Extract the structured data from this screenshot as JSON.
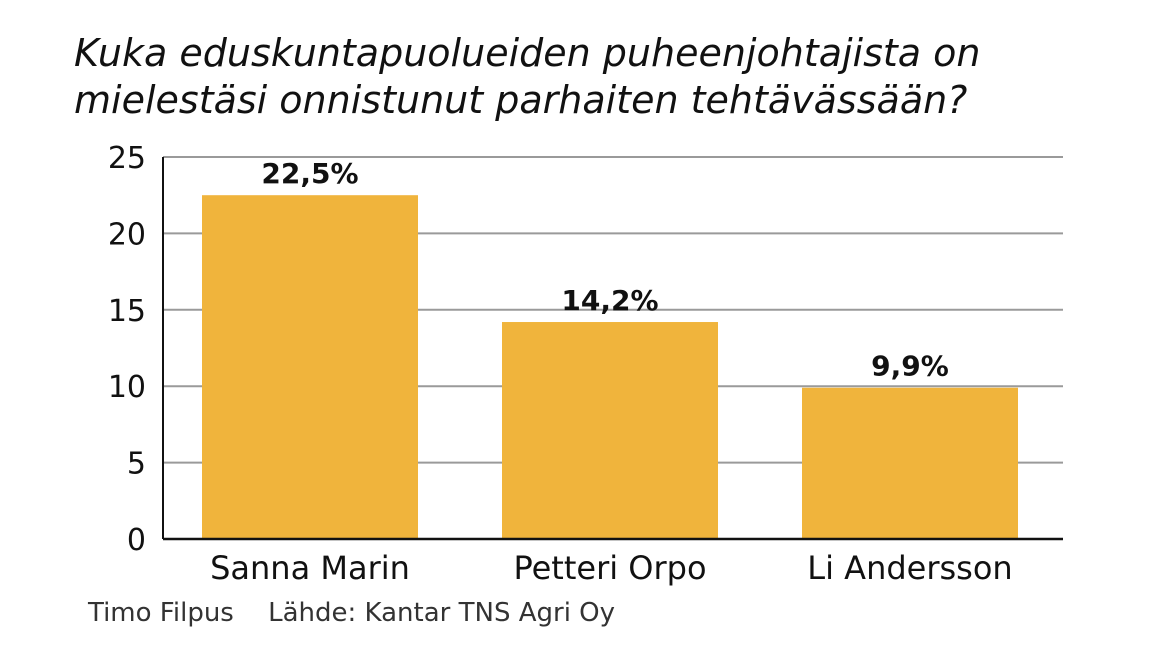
{
  "colors": {
    "bar": "#F0B43C",
    "grid": "#9a9a9a",
    "axis": "#111111",
    "text": "#111111"
  },
  "chart_data": {
    "type": "bar",
    "title": "Kuka eduskuntapuolueiden puheenjohtajista on mielestäsi onnistunut parhaiten tehtävässään?",
    "categories": [
      "Sanna Marin",
      "Petteri Orpo",
      "Li Andersson"
    ],
    "values": [
      22.5,
      14.2,
      9.9
    ],
    "data_labels": [
      "22,5%",
      "14,2%",
      "9,9%"
    ],
    "yticks": [
      0,
      5,
      10,
      15,
      20,
      25
    ],
    "ylim": [
      0,
      25
    ],
    "grid": true,
    "xlabel": "",
    "ylabel": ""
  },
  "footer": {
    "photographer": "Timo Filpus",
    "source": "Lähde: Kantar TNS Agri Oy"
  }
}
